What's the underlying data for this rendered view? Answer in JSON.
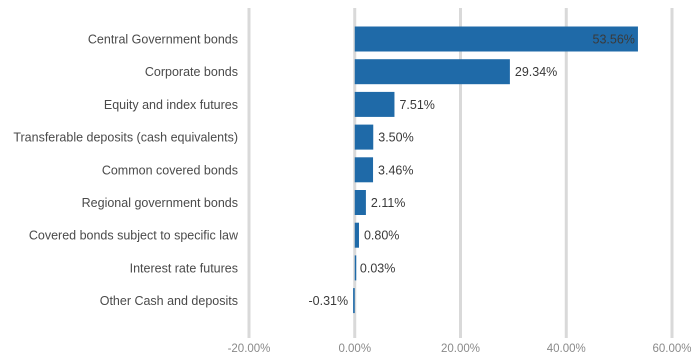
{
  "chart_data": {
    "type": "bar",
    "orientation": "horizontal",
    "categories": [
      "Central Government bonds",
      "Corporate bonds",
      "Equity and index futures",
      "Transferable deposits (cash equivalents)",
      "Common covered bonds",
      "Regional government bonds",
      "Covered bonds subject to specific law",
      "Interest rate futures",
      "Other Cash and deposits"
    ],
    "values": [
      53.56,
      29.34,
      7.51,
      3.5,
      3.46,
      2.11,
      0.8,
      0.03,
      -0.31
    ],
    "value_labels": [
      "53.56%",
      "29.34%",
      "7.51%",
      "3.50%",
      "3.46%",
      "2.11%",
      "0.80%",
      "0.03%",
      "-0.31%"
    ],
    "xlim": [
      -20,
      60
    ],
    "xticks": [
      -20,
      0,
      20,
      40,
      60
    ],
    "xtick_labels": [
      "-20.00%",
      "0.00%",
      "20.00%",
      "40.00%",
      "60.00%"
    ],
    "grid": true,
    "bar_color": "#1f6aa8",
    "title": "",
    "xlabel": "",
    "ylabel": ""
  }
}
